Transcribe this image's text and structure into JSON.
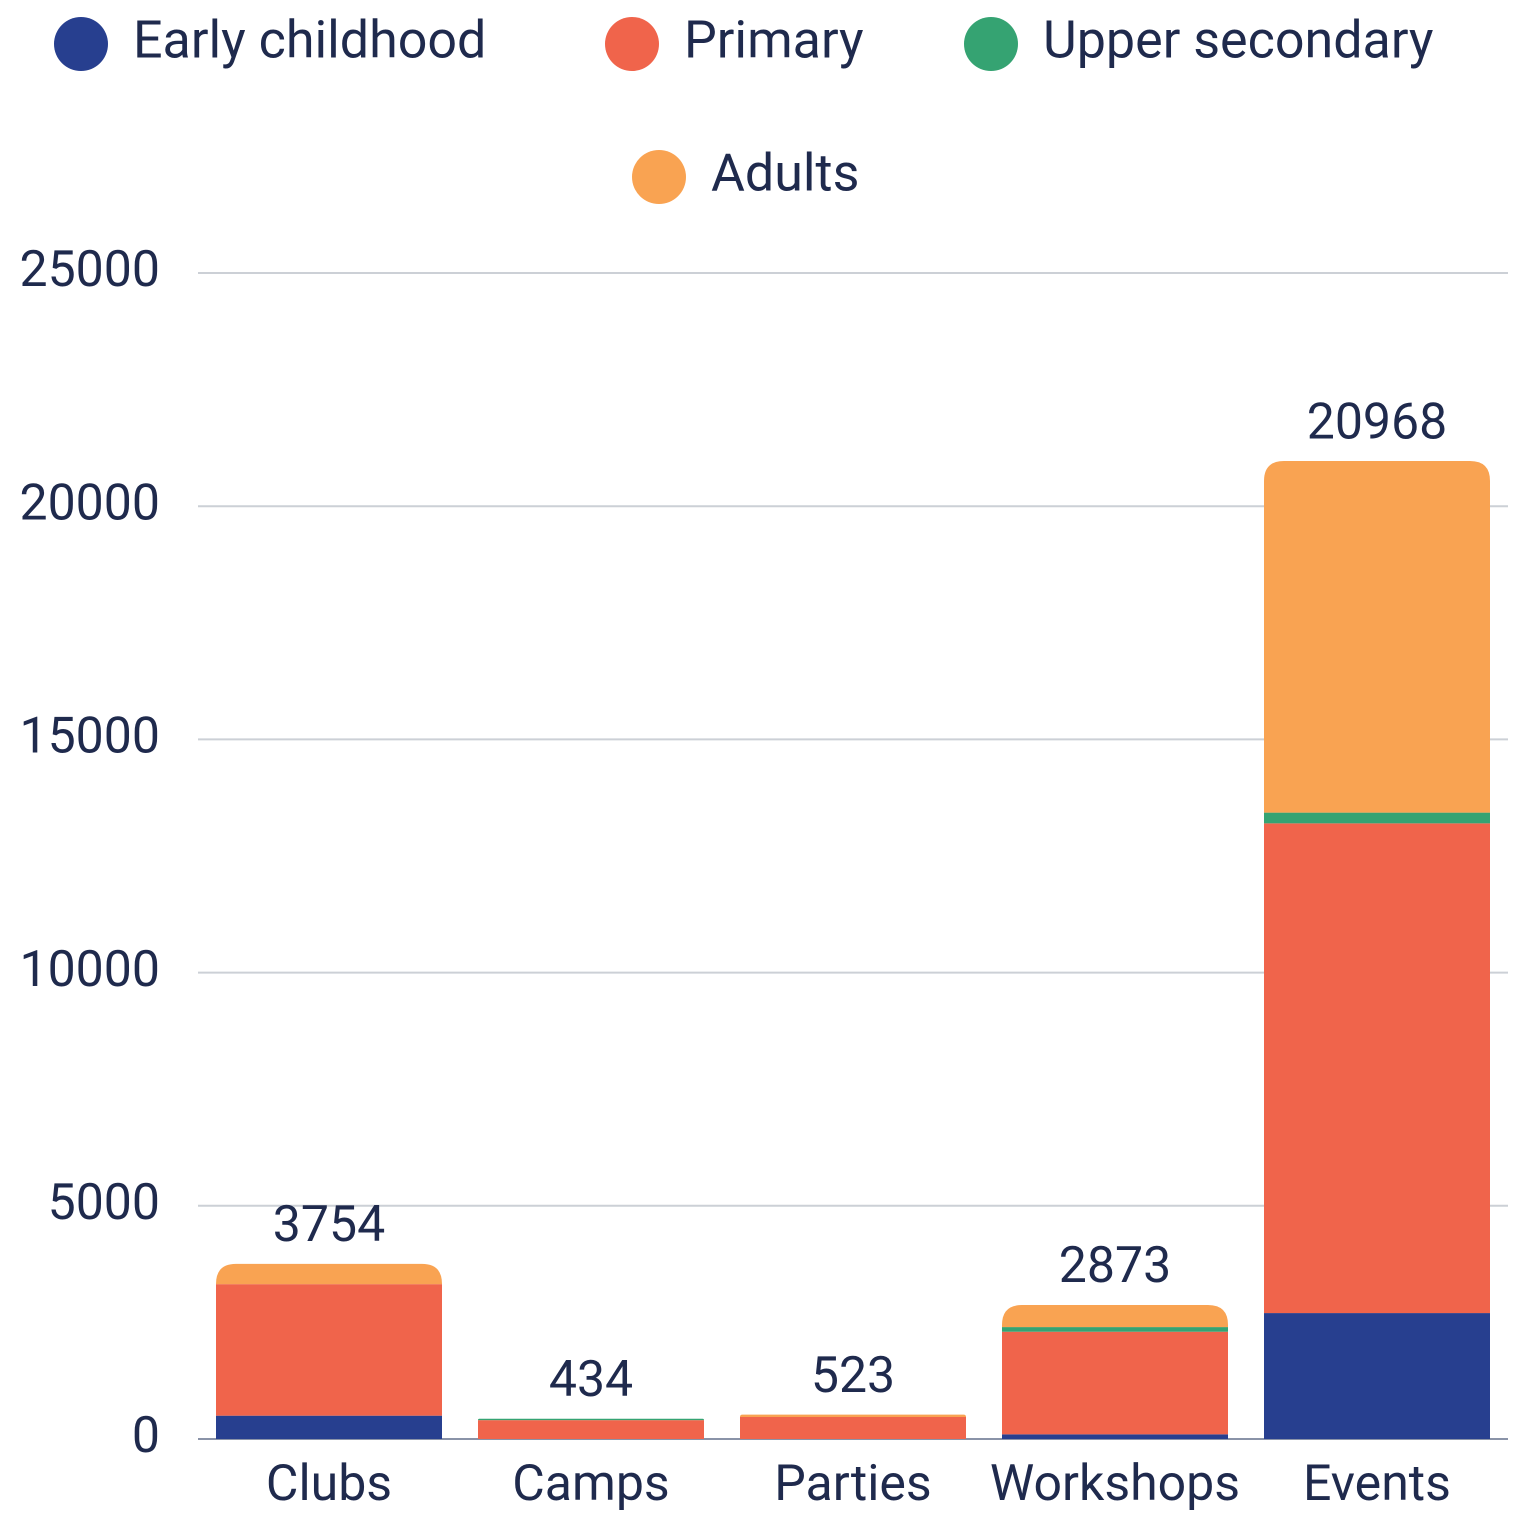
{
  "chart_data": {
    "type": "stacked_bar",
    "categories": [
      "Clubs",
      "Camps",
      "Parties",
      "Workshops",
      "Events"
    ],
    "series": [
      {
        "name": "Early childhood",
        "color": "#273f8f",
        "values": [
          500,
          0,
          0,
          100,
          2700
        ]
      },
      {
        "name": "Primary",
        "color": "#f0644b",
        "values": [
          2820,
          404,
          473,
          2200,
          10500
        ]
      },
      {
        "name": "Upper secondary",
        "color": "#35a372",
        "values": [
          0,
          30,
          0,
          100,
          230
        ]
      },
      {
        "name": "Adults",
        "color": "#f9a352",
        "values": [
          434,
          0,
          50,
          473,
          7538
        ]
      }
    ],
    "totals": [
      3754,
      434,
      523,
      2873,
      20968
    ],
    "ylim": [
      0,
      25000
    ],
    "yticks": [
      0,
      5000,
      10000,
      15000,
      20000,
      25000
    ],
    "grid": true,
    "legend": "top"
  }
}
